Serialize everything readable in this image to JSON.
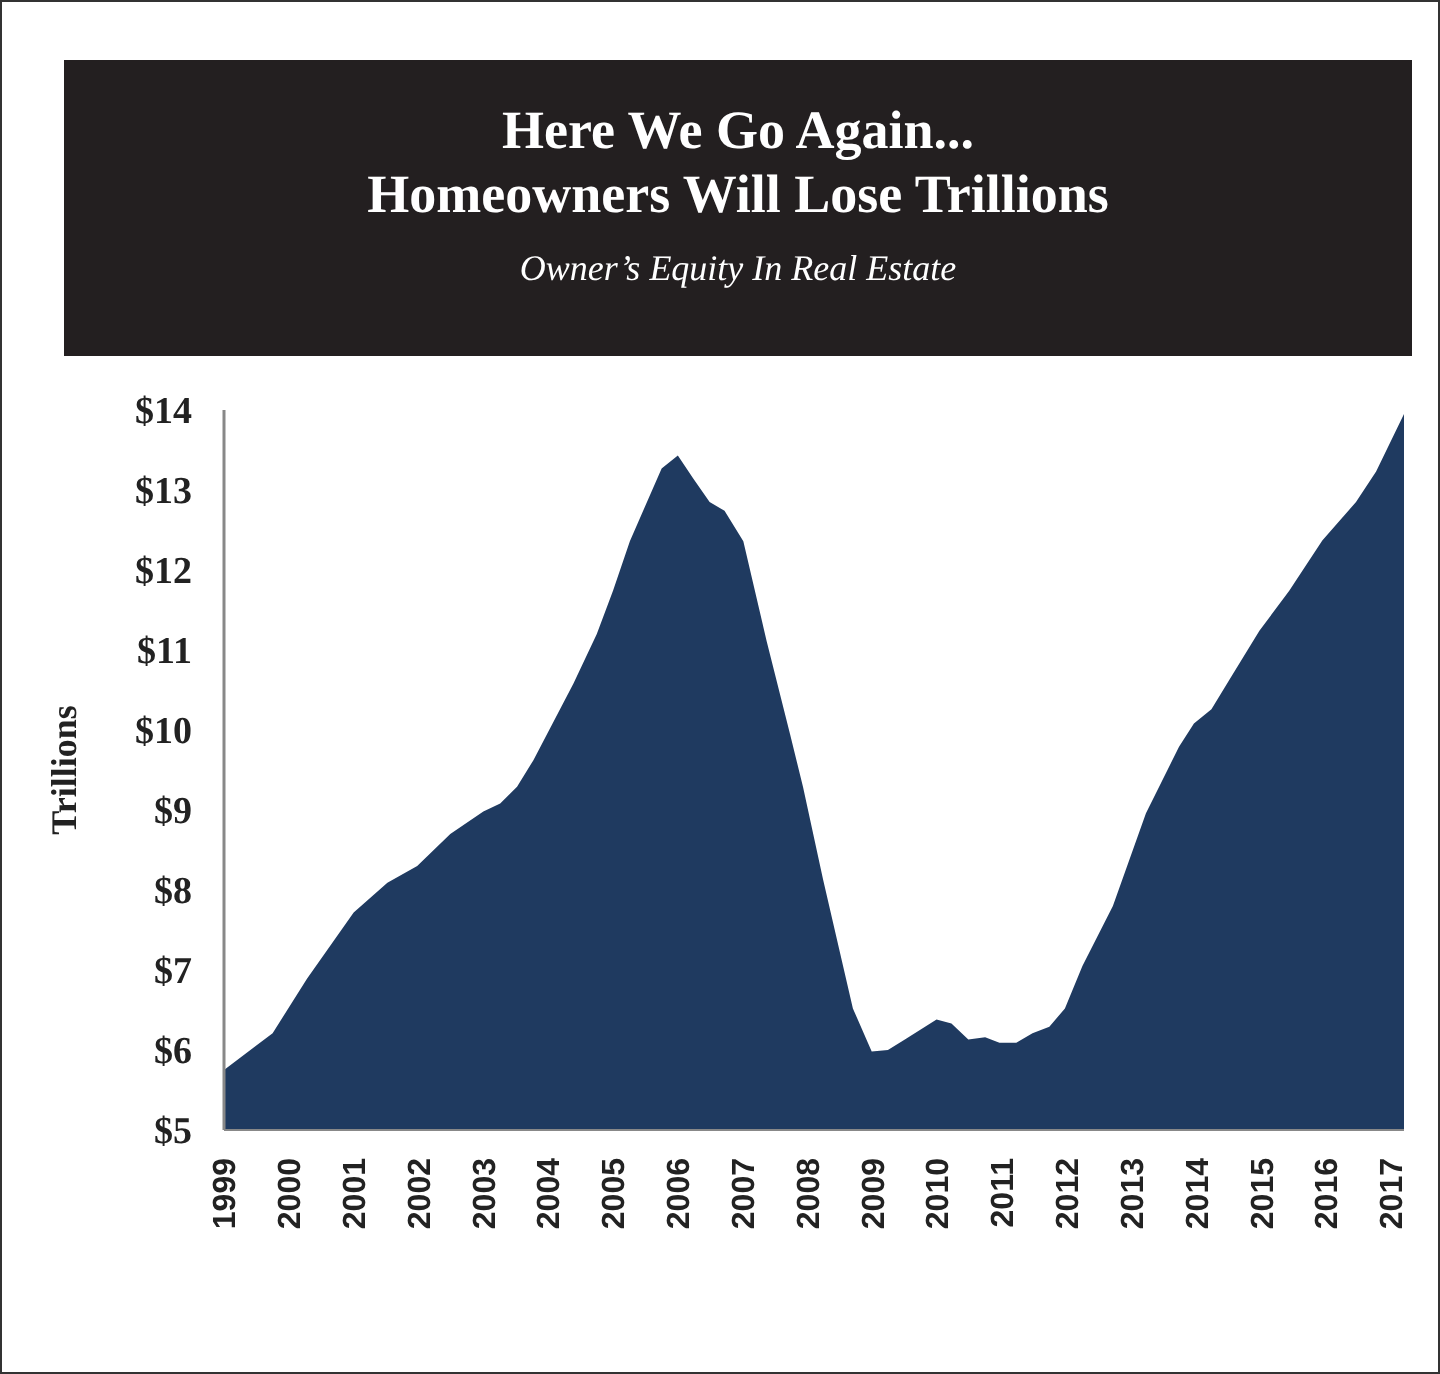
{
  "chart_data": {
    "type": "area",
    "title": "Here We Go Again...\nHomeowners Will Lose Trillions",
    "subtitle": "Owner’s Equity In Real Estate",
    "ylabel": "Trillions",
    "x": [
      1999.0,
      1999.75,
      2000.28,
      2001.0,
      2001.52,
      2001.98,
      2002.49,
      2003.0,
      2003.26,
      2003.52,
      2003.77,
      2004.39,
      2004.75,
      2005.0,
      2005.26,
      2005.75,
      2006.0,
      2006.24,
      2006.49,
      2006.72,
      2007.01,
      2007.37,
      2007.73,
      2007.93,
      2008.24,
      2008.7,
      2008.99,
      2009.24,
      2009.52,
      2009.99,
      2010.22,
      2010.48,
      2010.74,
      2010.96,
      2011.22,
      2011.47,
      2011.73,
      2011.97,
      2012.24,
      2012.71,
      2013.22,
      2013.73,
      2013.96,
      2014.23,
      2014.5,
      2014.97,
      2015.43,
      2015.94,
      2016.46,
      2016.77,
      2017.2
    ],
    "series": [
      {
        "color": "#1f3a60",
        "values": [
          5.75,
          6.21,
          6.89,
          7.72,
          8.09,
          8.3,
          8.7,
          8.98,
          9.08,
          9.29,
          9.62,
          10.58,
          11.2,
          11.74,
          12.36,
          13.27,
          13.43,
          13.14,
          12.85,
          12.74,
          12.36,
          11.11,
          9.95,
          9.29,
          8.13,
          6.52,
          5.98,
          6.0,
          6.14,
          6.38,
          6.33,
          6.13,
          6.16,
          6.09,
          6.09,
          6.21,
          6.29,
          6.52,
          7.05,
          7.8,
          8.96,
          9.79,
          10.08,
          10.26,
          10.62,
          11.24,
          11.74,
          12.37,
          12.85,
          13.23,
          13.95
        ]
      }
    ],
    "xlim": [
      1999,
      2017.2
    ],
    "xticks": [
      1999,
      2000,
      2001,
      2002,
      2003,
      2004,
      2005,
      2006,
      2007,
      2008,
      2009,
      2010,
      2011,
      2012,
      2013,
      2014,
      2015,
      2016,
      2017
    ],
    "ylim": [
      5,
      14
    ],
    "yticks": [
      {
        "value": 5,
        "label": "$5"
      },
      {
        "value": 6,
        "label": "$6"
      },
      {
        "value": 7,
        "label": "$7"
      },
      {
        "value": 8,
        "label": "$8"
      },
      {
        "value": 9,
        "label": "$9"
      },
      {
        "value": 10,
        "label": "$10"
      },
      {
        "value": 11,
        "label": "$11"
      },
      {
        "value": 12,
        "label": "$12"
      },
      {
        "value": 13,
        "label": "$13"
      },
      {
        "value": 14,
        "label": "$14"
      }
    ],
    "grid": false
  }
}
